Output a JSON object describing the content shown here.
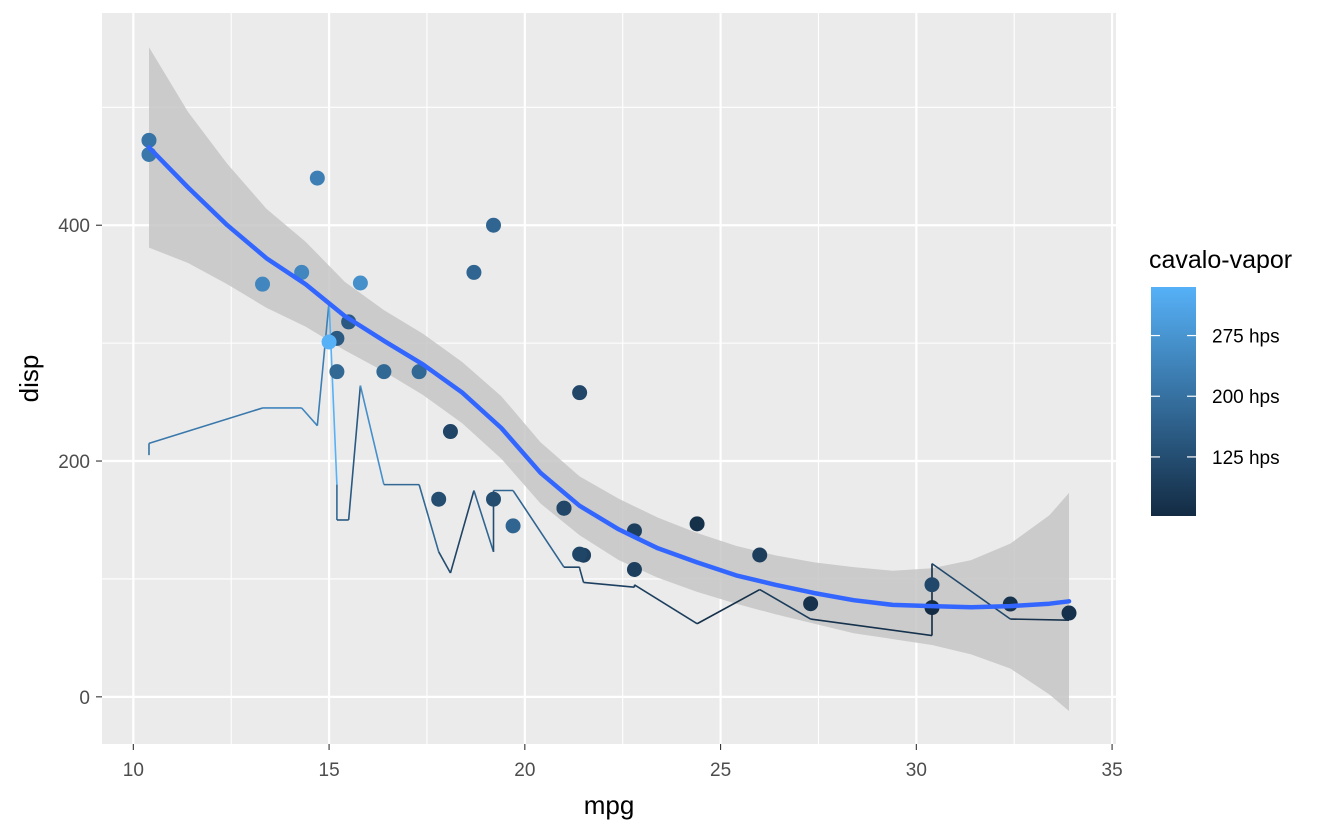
{
  "chart_data": {
    "type": "scatter",
    "xlabel": "mpg",
    "ylabel": "disp",
    "xlim": [
      9.2,
      35.1
    ],
    "ylim": [
      -40,
      580
    ],
    "x_ticks": [
      10,
      15,
      20,
      25,
      30,
      35
    ],
    "y_ticks": [
      0,
      200,
      400
    ],
    "colors": {
      "panel_bg": "#ebebeb",
      "grid_major": "#ffffff",
      "smooth_line": "#3366ff",
      "ribbon": "#c6c6c6",
      "low": "#132b43",
      "high": "#56b1f7"
    },
    "legend": {
      "title": "cavalo-vapor",
      "labels": [
        "275 hps",
        "200 hps",
        "125 hps"
      ],
      "label_values": [
        275,
        200,
        125
      ],
      "range": [
        52,
        335
      ]
    },
    "points": [
      {
        "mpg": 21.0,
        "disp": 160,
        "hp": 110
      },
      {
        "mpg": 21.0,
        "disp": 160,
        "hp": 110
      },
      {
        "mpg": 22.8,
        "disp": 108,
        "hp": 93
      },
      {
        "mpg": 21.4,
        "disp": 258,
        "hp": 110
      },
      {
        "mpg": 18.7,
        "disp": 360,
        "hp": 175
      },
      {
        "mpg": 18.1,
        "disp": 225,
        "hp": 105
      },
      {
        "mpg": 14.3,
        "disp": 360,
        "hp": 245
      },
      {
        "mpg": 24.4,
        "disp": 146.7,
        "hp": 62
      },
      {
        "mpg": 22.8,
        "disp": 140.8,
        "hp": 95
      },
      {
        "mpg": 19.2,
        "disp": 167.6,
        "hp": 123
      },
      {
        "mpg": 17.8,
        "disp": 167.6,
        "hp": 123
      },
      {
        "mpg": 16.4,
        "disp": 275.8,
        "hp": 180
      },
      {
        "mpg": 17.3,
        "disp": 275.8,
        "hp": 180
      },
      {
        "mpg": 15.2,
        "disp": 275.8,
        "hp": 180
      },
      {
        "mpg": 10.4,
        "disp": 472,
        "hp": 205
      },
      {
        "mpg": 10.4,
        "disp": 460,
        "hp": 215
      },
      {
        "mpg": 14.7,
        "disp": 440,
        "hp": 230
      },
      {
        "mpg": 32.4,
        "disp": 78.7,
        "hp": 66
      },
      {
        "mpg": 30.4,
        "disp": 75.7,
        "hp": 52
      },
      {
        "mpg": 33.9,
        "disp": 71.1,
        "hp": 65
      },
      {
        "mpg": 21.5,
        "disp": 120.1,
        "hp": 97
      },
      {
        "mpg": 15.5,
        "disp": 318,
        "hp": 150
      },
      {
        "mpg": 15.2,
        "disp": 304,
        "hp": 150
      },
      {
        "mpg": 13.3,
        "disp": 350,
        "hp": 245
      },
      {
        "mpg": 19.2,
        "disp": 400,
        "hp": 175
      },
      {
        "mpg": 27.3,
        "disp": 79,
        "hp": 66
      },
      {
        "mpg": 26.0,
        "disp": 120.3,
        "hp": 91
      },
      {
        "mpg": 30.4,
        "disp": 95.1,
        "hp": 113
      },
      {
        "mpg": 15.8,
        "disp": 351,
        "hp": 264
      },
      {
        "mpg": 19.7,
        "disp": 145,
        "hp": 175
      },
      {
        "mpg": 15.0,
        "disp": 301,
        "hp": 335
      },
      {
        "mpg": 21.4,
        "disp": 121,
        "hp": 109
      }
    ],
    "hp_line": [
      {
        "mpg": 10.4,
        "hp": 205
      },
      {
        "mpg": 10.4,
        "hp": 215
      },
      {
        "mpg": 13.3,
        "hp": 245
      },
      {
        "mpg": 14.3,
        "hp": 245
      },
      {
        "mpg": 14.7,
        "hp": 230
      },
      {
        "mpg": 15.0,
        "hp": 335
      },
      {
        "mpg": 15.2,
        "hp": 180
      },
      {
        "mpg": 15.2,
        "hp": 150
      },
      {
        "mpg": 15.5,
        "hp": 150
      },
      {
        "mpg": 15.8,
        "hp": 264
      },
      {
        "mpg": 16.4,
        "hp": 180
      },
      {
        "mpg": 17.3,
        "hp": 180
      },
      {
        "mpg": 17.8,
        "hp": 123
      },
      {
        "mpg": 18.1,
        "hp": 105
      },
      {
        "mpg": 18.7,
        "hp": 175
      },
      {
        "mpg": 19.2,
        "hp": 123
      },
      {
        "mpg": 19.2,
        "hp": 175
      },
      {
        "mpg": 19.7,
        "hp": 175
      },
      {
        "mpg": 21.0,
        "hp": 110
      },
      {
        "mpg": 21.0,
        "hp": 110
      },
      {
        "mpg": 21.4,
        "hp": 110
      },
      {
        "mpg": 21.4,
        "hp": 109
      },
      {
        "mpg": 21.5,
        "hp": 97
      },
      {
        "mpg": 22.8,
        "hp": 93
      },
      {
        "mpg": 22.8,
        "hp": 95
      },
      {
        "mpg": 24.4,
        "hp": 62
      },
      {
        "mpg": 26.0,
        "hp": 91
      },
      {
        "mpg": 27.3,
        "hp": 66
      },
      {
        "mpg": 30.4,
        "hp": 52
      },
      {
        "mpg": 30.4,
        "hp": 113
      },
      {
        "mpg": 32.4,
        "hp": 66
      },
      {
        "mpg": 33.9,
        "hp": 65
      }
    ],
    "smooth": [
      {
        "x": 10.4,
        "y": 466,
        "lo": 381,
        "hi": 551
      },
      {
        "x": 11.4,
        "y": 432,
        "lo": 368,
        "hi": 496
      },
      {
        "x": 12.4,
        "y": 400,
        "lo": 350,
        "hi": 452
      },
      {
        "x": 13.4,
        "y": 372,
        "lo": 330,
        "hi": 414
      },
      {
        "x": 14.4,
        "y": 350,
        "lo": 314,
        "hi": 386
      },
      {
        "x": 15.4,
        "y": 323,
        "lo": 294,
        "hi": 352
      },
      {
        "x": 16.4,
        "y": 302,
        "lo": 276,
        "hi": 328
      },
      {
        "x": 17.4,
        "y": 282,
        "lo": 256,
        "hi": 308
      },
      {
        "x": 18.4,
        "y": 258,
        "lo": 232,
        "hi": 284
      },
      {
        "x": 19.4,
        "y": 228,
        "lo": 202,
        "hi": 255
      },
      {
        "x": 20.4,
        "y": 190,
        "lo": 164,
        "hi": 216
      },
      {
        "x": 21.4,
        "y": 162,
        "lo": 137,
        "hi": 187
      },
      {
        "x": 22.4,
        "y": 142,
        "lo": 116,
        "hi": 168
      },
      {
        "x": 23.4,
        "y": 126,
        "lo": 101,
        "hi": 152
      },
      {
        "x": 24.4,
        "y": 114,
        "lo": 89,
        "hi": 139
      },
      {
        "x": 25.4,
        "y": 103,
        "lo": 79,
        "hi": 128
      },
      {
        "x": 26.4,
        "y": 95,
        "lo": 70,
        "hi": 120
      },
      {
        "x": 27.4,
        "y": 88,
        "lo": 62,
        "hi": 114
      },
      {
        "x": 28.4,
        "y": 82,
        "lo": 54,
        "hi": 110
      },
      {
        "x": 29.4,
        "y": 78,
        "lo": 49,
        "hi": 107
      },
      {
        "x": 30.4,
        "y": 77,
        "lo": 44,
        "hi": 109
      },
      {
        "x": 31.4,
        "y": 76,
        "lo": 36,
        "hi": 116
      },
      {
        "x": 32.4,
        "y": 77,
        "lo": 24,
        "hi": 130
      },
      {
        "x": 33.4,
        "y": 79,
        "lo": 2,
        "hi": 154
      },
      {
        "x": 33.9,
        "y": 81,
        "lo": -12,
        "hi": 173
      }
    ]
  }
}
